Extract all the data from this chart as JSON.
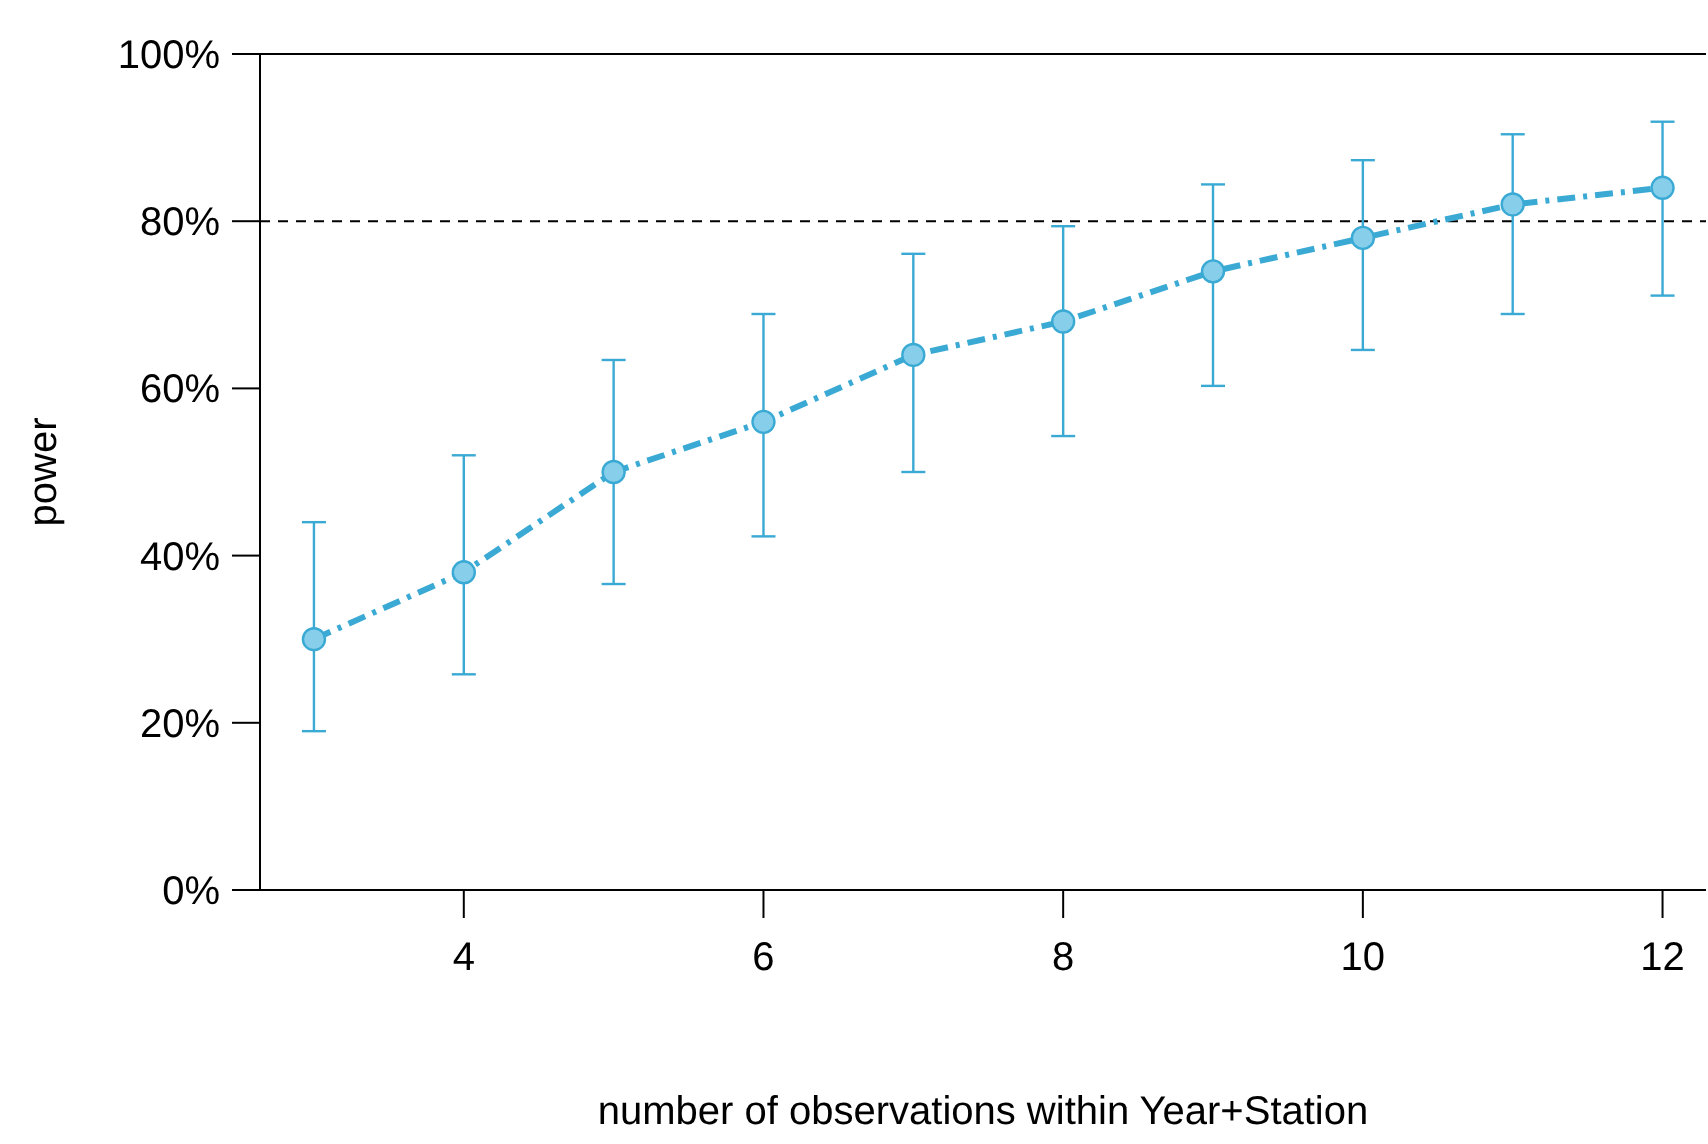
{
  "chart_data": {
    "type": "line",
    "xlabel": "number of observations within Year+Station",
    "ylabel": "power",
    "x": [
      3,
      4,
      5,
      6,
      7,
      8,
      9,
      10,
      11,
      12
    ],
    "series": [
      {
        "color": "#3aaad4",
        "values": [
          30,
          38,
          50,
          56,
          64,
          68,
          74,
          78,
          82,
          84
        ],
        "errors": [
          [
            19,
            44
          ],
          [
            25.8,
            52
          ],
          [
            36.6,
            63.4
          ],
          [
            42.3,
            68.9
          ],
          [
            50,
            76.1
          ],
          [
            54.3,
            79.4
          ],
          [
            60.3,
            84.4
          ],
          [
            64.6,
            87.3
          ],
          [
            68.9,
            90.4
          ],
          [
            71.1,
            91.9
          ]
        ]
      }
    ],
    "xlim": [
      2.64,
      12.29
    ],
    "xticks": [
      4,
      6,
      8,
      10,
      12
    ],
    "ylim": [
      0,
      100
    ],
    "yticks": [
      {
        "value": 0,
        "label": "0%"
      },
      {
        "value": 20,
        "label": "20%"
      },
      {
        "value": 40,
        "label": "40%"
      },
      {
        "value": 60,
        "label": "60%"
      },
      {
        "value": 80,
        "label": "80%"
      },
      {
        "value": 100,
        "label": "100%"
      }
    ],
    "ref_lines": [
      {
        "axis": "y",
        "value": 80,
        "color": "#000000",
        "line_style": "dashed"
      }
    ],
    "marker": "circle",
    "line_style": "dashed"
  }
}
